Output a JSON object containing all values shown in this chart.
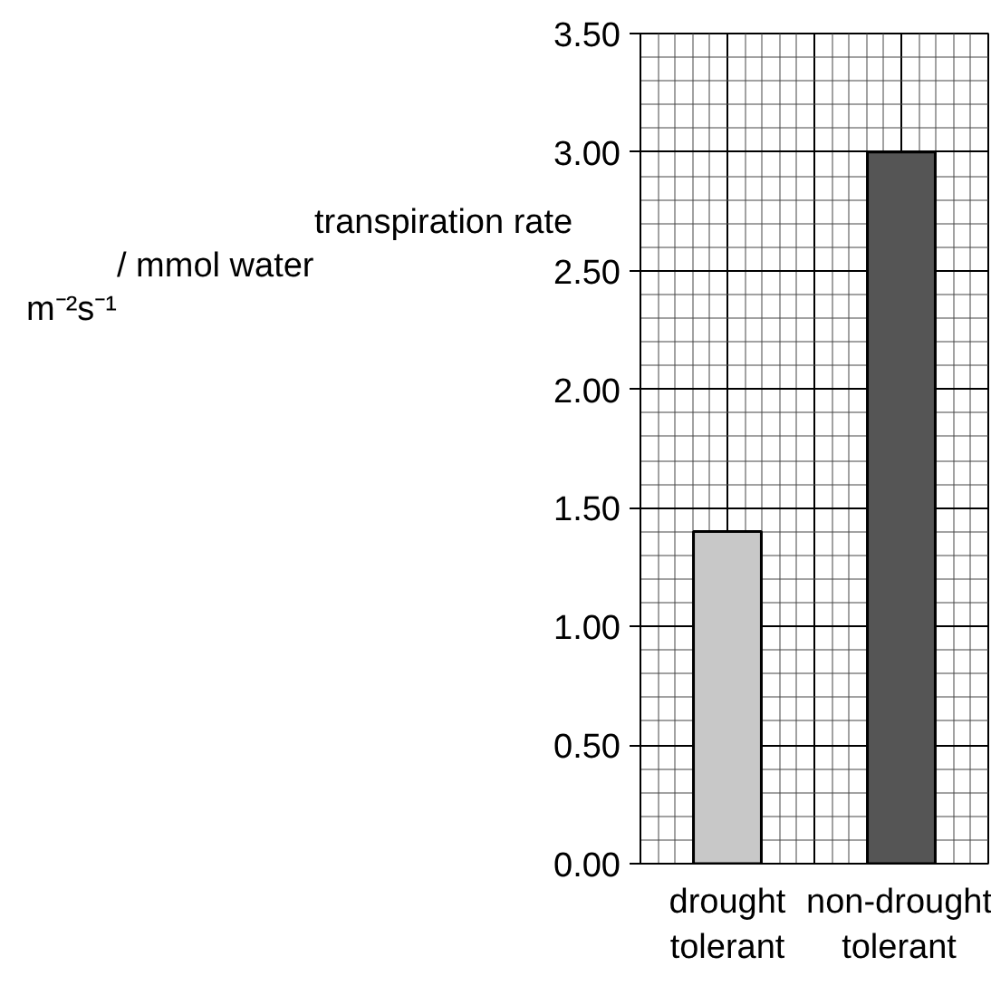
{
  "chart_data": {
    "type": "bar",
    "ylabel": "transpiration rate\n/ mmol water\nm⁻²s⁻¹",
    "categories": [
      "drought\ntolerant",
      "non-drought\ntolerant"
    ],
    "values": [
      1.4,
      3.0
    ],
    "colors": [
      "#c8c8c8",
      "#555555"
    ],
    "ylim": [
      0,
      3.5
    ],
    "yticks": [
      {
        "value": 0,
        "label": "0.00"
      },
      {
        "value": 0.5,
        "label": "0.50"
      },
      {
        "value": 1,
        "label": "1.00"
      },
      {
        "value": 1.5,
        "label": "1.50"
      },
      {
        "value": 2,
        "label": "2.00"
      },
      {
        "value": 2.5,
        "label": "2.50"
      },
      {
        "value": 3,
        "label": "3.00"
      },
      {
        "value": 3.5,
        "label": "3.50"
      }
    ],
    "grid": true
  }
}
